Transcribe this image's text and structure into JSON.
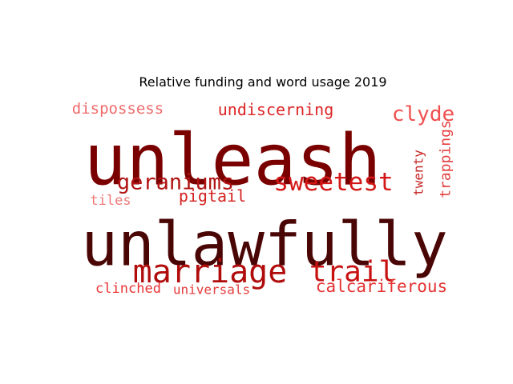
{
  "chart_data": {
    "type": "wordcloud",
    "title": "Relative funding and word usage 2019",
    "words": [
      {
        "text": "unlawfully",
        "weight": 1.0,
        "color": "#4a0505"
      },
      {
        "text": "unleash",
        "weight": 0.95,
        "color": "#7a0000"
      },
      {
        "text": "marriage",
        "weight": 0.55,
        "color": "#b00c0c"
      },
      {
        "text": "trail",
        "weight": 0.5,
        "color": "#c81212"
      },
      {
        "text": "sweetest",
        "weight": 0.42,
        "color": "#d41818"
      },
      {
        "text": "geraniums",
        "weight": 0.36,
        "color": "#b01313"
      },
      {
        "text": "clyde",
        "weight": 0.34,
        "color": "#f05050"
      },
      {
        "text": "calcariferous",
        "weight": 0.3,
        "color": "#e43232"
      },
      {
        "text": "undiscerning",
        "weight": 0.28,
        "color": "#dc2626"
      },
      {
        "text": "pigtail",
        "weight": 0.26,
        "color": "#d42222"
      },
      {
        "text": "dispossess",
        "weight": 0.26,
        "color": "#f06a6a"
      },
      {
        "text": "trappings",
        "weight": 0.26,
        "color": "#e44040"
      },
      {
        "text": "clinched",
        "weight": 0.24,
        "color": "#ea3434"
      },
      {
        "text": "tiles",
        "weight": 0.22,
        "color": "#f07878"
      },
      {
        "text": "universals",
        "weight": 0.2,
        "color": "#e43a3a"
      },
      {
        "text": "twenty",
        "weight": 0.2,
        "color": "#c42424"
      }
    ]
  }
}
